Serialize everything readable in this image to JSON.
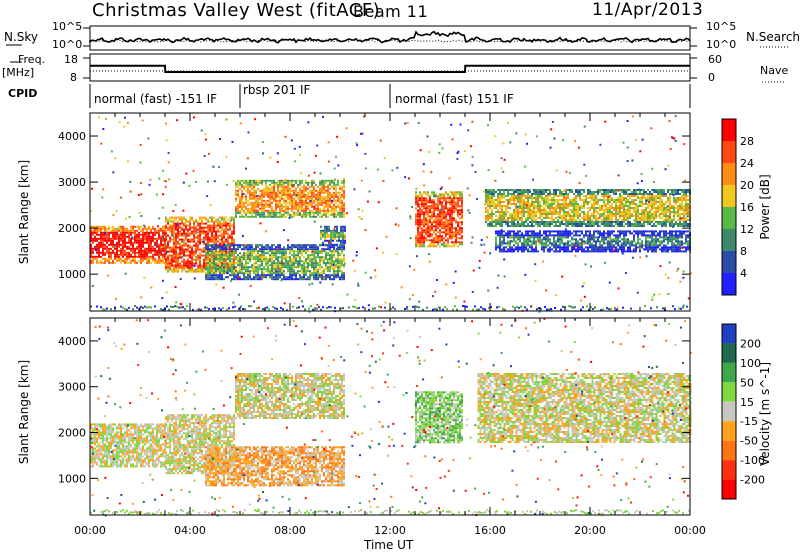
{
  "header": {
    "station": "Christmas Valley West (fitACF)",
    "beam": "Beam 11",
    "date": "11/Apr/2013"
  },
  "strip_labels": {
    "nsky": "N.Sky",
    "nsky_ticks": [
      "10^5",
      "10^0"
    ],
    "nsearch": "N.Search",
    "nsearch_ticks": [
      "10^5",
      "10^0"
    ],
    "freq": "Freq.",
    "freq_unit": "[MHz]",
    "freq_ticks": [
      "18",
      "8"
    ],
    "nave": "Nave",
    "nave_ticks": [
      "60",
      "0"
    ],
    "cpid": "CPID"
  },
  "cpid_modes": [
    {
      "label": "normal (fast) -151 IF",
      "start_hour": 0,
      "end_hour": 6
    },
    {
      "label": "rbsp 201 IF",
      "start_hour": 6,
      "end_hour": 12
    },
    {
      "label": "normal (fast) 151 IF",
      "start_hour": 12,
      "end_hour": 24
    }
  ],
  "chart_data": [
    {
      "type": "line",
      "name": "frequency",
      "x": [
        0,
        3,
        3.01,
        15,
        15.01,
        24
      ],
      "y": [
        13.5,
        13.5,
        10.9,
        10.9,
        13.5,
        13.5
      ],
      "ylim": [
        8,
        18
      ],
      "xlim": [
        0,
        24
      ]
    },
    {
      "type": "heatmap",
      "name": "power",
      "xlabel": "Time UT",
      "ylabel": "Slant Range [km]",
      "xlim": [
        0,
        24
      ],
      "ylim": [
        200,
        4500
      ],
      "x_ticks": [
        "00:00",
        "04:00",
        "08:00",
        "12:00",
        "16:00",
        "20:00",
        "00:00"
      ],
      "y_ticks": [
        "1000",
        "2000",
        "3000",
        "4000"
      ],
      "colorbar_label": "Power [dB]",
      "colorbar_ticks": [
        "4",
        "8",
        "12",
        "16",
        "20",
        "24",
        "28"
      ],
      "colors": [
        "#2020ff",
        "#2c4aa8",
        "#3c8a6a",
        "#58b848",
        "#f0c820",
        "#ff8c14",
        "#ff4814",
        "#ff0000"
      ],
      "bands": [
        {
          "x0": 0,
          "x1": 3,
          "r0": 1250,
          "r1": 2050,
          "level": 7
        },
        {
          "x0": 3,
          "x1": 5.8,
          "r0": 1050,
          "r1": 2250,
          "level": 6
        },
        {
          "x0": 5.8,
          "x1": 10.2,
          "r0": 2250,
          "r1": 3050,
          "level": 5
        },
        {
          "x0": 4.6,
          "x1": 10.2,
          "r0": 900,
          "r1": 1650,
          "level": 3
        },
        {
          "x0": 9.2,
          "x1": 10.2,
          "r0": 1650,
          "r1": 2050,
          "level": 3
        },
        {
          "x0": 13.0,
          "x1": 14.9,
          "r0": 1600,
          "r1": 2800,
          "level": 6
        },
        {
          "x0": 15.8,
          "x1": 24,
          "r0": 2050,
          "r1": 2850,
          "level": 4
        },
        {
          "x0": 16.2,
          "x1": 24,
          "r0": 1500,
          "r1": 1950,
          "level": 2
        }
      ]
    },
    {
      "type": "heatmap",
      "name": "velocity",
      "xlabel": "Time UT",
      "ylabel": "Slant Range [km]",
      "xlim": [
        0,
        24
      ],
      "ylim": [
        200,
        4500
      ],
      "x_ticks": [
        "00:00",
        "04:00",
        "08:00",
        "12:00",
        "16:00",
        "20:00",
        "00:00"
      ],
      "y_ticks": [
        "1000",
        "2000",
        "3000",
        "4000"
      ],
      "colorbar_label": "Velocity [m s^-1]",
      "colorbar_ticks": [
        "200",
        "100",
        "50",
        "15",
        "-15",
        "-50",
        "-100",
        "-200"
      ],
      "colors": [
        "#2040c0",
        "#1e6a4a",
        "#40a848",
        "#80d840",
        "#c8c8c0",
        "#ffa41c",
        "#ff7414",
        "#ff3010",
        "#ff0000"
      ],
      "bands": [
        {
          "x0": 0,
          "x1": 3,
          "r0": 1250,
          "r1": 2200,
          "level": 4
        },
        {
          "x0": 3,
          "x1": 5.8,
          "r0": 1100,
          "r1": 2400,
          "level": 4
        },
        {
          "x0": 5.8,
          "x1": 10.2,
          "r0": 2300,
          "r1": 3300,
          "level": 4
        },
        {
          "x0": 4.6,
          "x1": 10.2,
          "r0": 850,
          "r1": 1700,
          "level": 5
        },
        {
          "x0": 13.0,
          "x1": 14.9,
          "r0": 1800,
          "r1": 2900,
          "level": 3
        },
        {
          "x0": 15.5,
          "x1": 24,
          "r0": 1800,
          "r1": 3300,
          "level": 4
        }
      ]
    }
  ]
}
